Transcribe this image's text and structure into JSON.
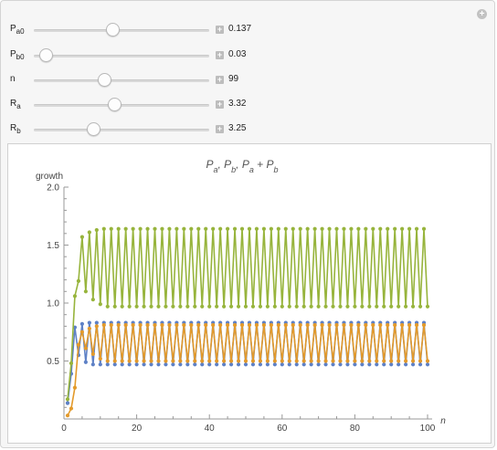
{
  "controls": [
    {
      "label": "P",
      "sub": "a0",
      "value": "0.137",
      "position": 0.45
    },
    {
      "label": "P",
      "sub": "b0",
      "value": "0.03",
      "position": 0.07
    },
    {
      "label": "n",
      "sub": "",
      "value": "99",
      "position": 0.4
    },
    {
      "label": "R",
      "sub": "a",
      "value": "3.32",
      "position": 0.46
    },
    {
      "label": "R",
      "sub": "b",
      "value": "3.25",
      "position": 0.34
    }
  ],
  "colors": {
    "a": "#5e81c6",
    "b": "#e39a2b",
    "sum": "#97b43c"
  },
  "chart_data": {
    "type": "line",
    "title": "P_a, P_b, P_a + P_b",
    "ylabel": "growth",
    "xlabel": "n",
    "xlim": [
      0,
      100
    ],
    "ylim": [
      0,
      2.0
    ],
    "x_ticks": [
      0,
      20,
      40,
      60,
      80,
      100
    ],
    "y_ticks": [
      0.5,
      1.0,
      1.5,
      2.0
    ],
    "y_tick_labels": [
      "0.5",
      "1.0",
      "1.5",
      "2.0"
    ],
    "series": [
      {
        "key": "a",
        "x0": 1,
        "dx": 1,
        "values": [
          0.137,
          0.39,
          0.79,
          0.55,
          0.82,
          0.49,
          0.83,
          0.47,
          0.83,
          0.47,
          0.83,
          0.47,
          0.83,
          0.47,
          0.83,
          0.47,
          0.83,
          0.47,
          0.83,
          0.47,
          0.83,
          0.47,
          0.83,
          0.47,
          0.83,
          0.47,
          0.83,
          0.47,
          0.83,
          0.47,
          0.83,
          0.47,
          0.83,
          0.47,
          0.83,
          0.47,
          0.83,
          0.47,
          0.83,
          0.47,
          0.83,
          0.47,
          0.83,
          0.47,
          0.83,
          0.47,
          0.83,
          0.47,
          0.83,
          0.47,
          0.83,
          0.47,
          0.83,
          0.47,
          0.83,
          0.47,
          0.83,
          0.47,
          0.83,
          0.47,
          0.83,
          0.47,
          0.83,
          0.47,
          0.83,
          0.47,
          0.83,
          0.47,
          0.83,
          0.47,
          0.83,
          0.47,
          0.83,
          0.47,
          0.83,
          0.47,
          0.83,
          0.47,
          0.83,
          0.47,
          0.83,
          0.47,
          0.83,
          0.47,
          0.83,
          0.47,
          0.83,
          0.47,
          0.83,
          0.47,
          0.83,
          0.47,
          0.83,
          0.47,
          0.83,
          0.47,
          0.83,
          0.47,
          0.83,
          0.47
        ]
      },
      {
        "key": "b",
        "x0": 1,
        "dx": 1,
        "values": [
          0.03,
          0.09,
          0.27,
          0.64,
          0.75,
          0.61,
          0.78,
          0.56,
          0.8,
          0.52,
          0.81,
          0.5,
          0.81,
          0.5,
          0.81,
          0.5,
          0.81,
          0.5,
          0.81,
          0.5,
          0.81,
          0.5,
          0.81,
          0.5,
          0.81,
          0.5,
          0.81,
          0.5,
          0.81,
          0.5,
          0.81,
          0.5,
          0.81,
          0.5,
          0.81,
          0.5,
          0.81,
          0.5,
          0.81,
          0.5,
          0.81,
          0.5,
          0.81,
          0.5,
          0.81,
          0.5,
          0.81,
          0.5,
          0.81,
          0.5,
          0.81,
          0.5,
          0.81,
          0.5,
          0.81,
          0.5,
          0.81,
          0.5,
          0.81,
          0.5,
          0.81,
          0.5,
          0.81,
          0.5,
          0.81,
          0.5,
          0.81,
          0.5,
          0.81,
          0.5,
          0.81,
          0.5,
          0.81,
          0.5,
          0.81,
          0.5,
          0.81,
          0.5,
          0.81,
          0.5,
          0.81,
          0.5,
          0.81,
          0.5,
          0.81,
          0.5,
          0.81,
          0.5,
          0.81,
          0.5,
          0.81,
          0.5,
          0.81,
          0.5,
          0.81,
          0.5,
          0.81,
          0.5,
          0.81,
          0.5
        ]
      },
      {
        "key": "sum",
        "x0": 1,
        "dx": 1,
        "values": [
          0.17,
          0.48,
          1.06,
          1.19,
          1.57,
          1.1,
          1.61,
          1.03,
          1.63,
          0.99,
          1.64,
          0.97,
          1.64,
          0.97,
          1.64,
          0.97,
          1.64,
          0.97,
          1.64,
          0.97,
          1.64,
          0.97,
          1.64,
          0.97,
          1.64,
          0.97,
          1.64,
          0.97,
          1.64,
          0.97,
          1.64,
          0.97,
          1.64,
          0.97,
          1.64,
          0.97,
          1.64,
          0.97,
          1.64,
          0.97,
          1.64,
          0.97,
          1.64,
          0.97,
          1.64,
          0.97,
          1.64,
          0.97,
          1.64,
          0.97,
          1.64,
          0.97,
          1.64,
          0.97,
          1.64,
          0.97,
          1.64,
          0.97,
          1.64,
          0.97,
          1.64,
          0.97,
          1.64,
          0.97,
          1.64,
          0.97,
          1.64,
          0.97,
          1.64,
          0.97,
          1.64,
          0.97,
          1.64,
          0.97,
          1.64,
          0.97,
          1.64,
          0.97,
          1.64,
          0.97,
          1.64,
          0.97,
          1.64,
          0.97,
          1.64,
          0.97,
          1.64,
          0.97,
          1.64,
          0.97,
          1.64,
          0.97,
          1.64,
          0.97,
          1.64,
          0.97,
          1.64,
          0.97,
          1.64,
          0.97
        ]
      }
    ]
  }
}
